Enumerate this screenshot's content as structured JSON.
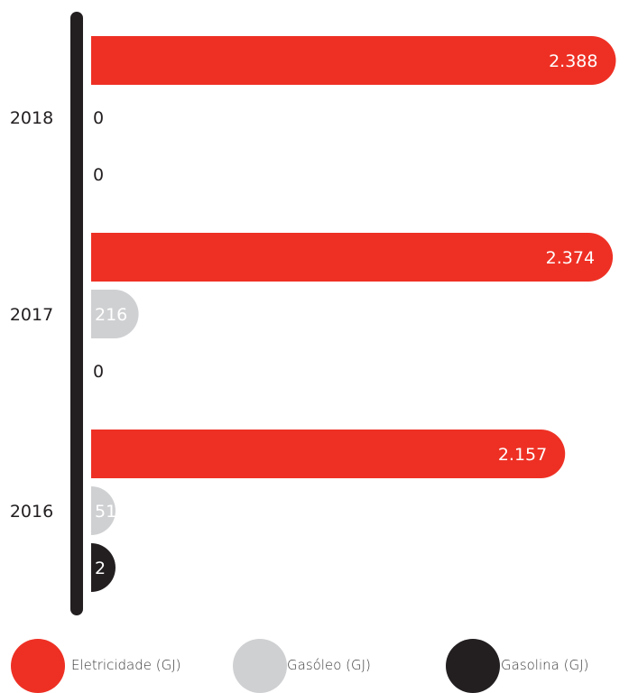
{
  "chart_data": {
    "type": "bar",
    "orientation": "horizontal",
    "categories": [
      "2018",
      "2017",
      "2016"
    ],
    "series": [
      {
        "name": "Eletricidade (GJ)",
        "color": "#ee3024",
        "label_color": "#ffffff",
        "values": [
          2388,
          2374,
          2157
        ],
        "labels": [
          "2.388",
          "2.374",
          "2.157"
        ]
      },
      {
        "name": "Gasóleo (GJ)",
        "color": "#cfd0d2",
        "label_color": "#ffffff",
        "values": [
          0,
          216,
          51
        ],
        "labels": [
          "0",
          "216",
          "51"
        ]
      },
      {
        "name": "Gasolina (GJ)",
        "color": "#231f20",
        "label_color": "#ffffff",
        "values": [
          0,
          0,
          2
        ],
        "labels": [
          "0",
          "0",
          "2"
        ]
      }
    ],
    "xlim": [
      0,
      2400
    ],
    "grid": false,
    "legend_position": "bottom"
  },
  "colors": {
    "axis": "#231f20",
    "category_text": "#231f20",
    "zero_text": "#231f20"
  }
}
